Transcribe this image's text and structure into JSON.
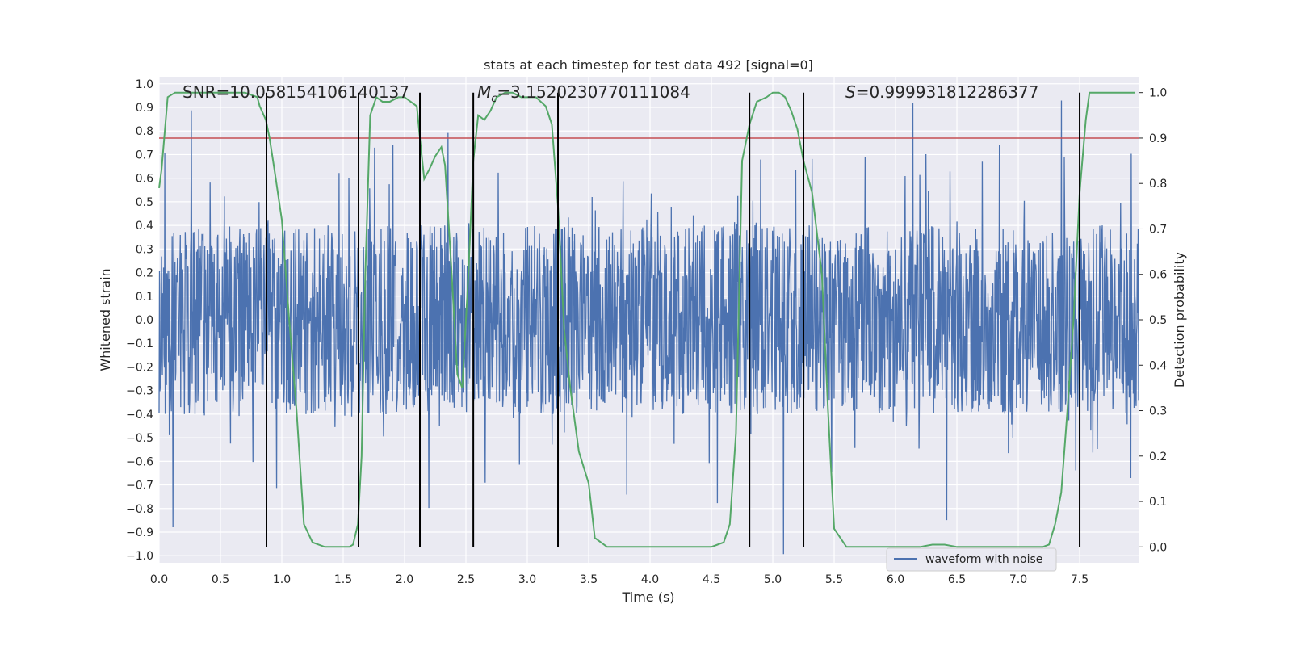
{
  "chart_data": {
    "type": "line",
    "title": "stats at each timestep for test data 492 [signal=0]",
    "xlabel": "Time (s)",
    "ylabel": "Whitened strain",
    "y2label": "Detection probability",
    "xlim": [
      0.0,
      7.98
    ],
    "ylim": [
      -1.03,
      1.03
    ],
    "y2lim": [
      -0.035,
      1.035
    ],
    "x_ticks": [
      0.0,
      0.5,
      1.0,
      1.5,
      2.0,
      2.5,
      3.0,
      3.5,
      4.0,
      4.5,
      5.0,
      5.5,
      6.0,
      6.5,
      7.0,
      7.5
    ],
    "x_tick_labels": [
      "0.0",
      "0.5",
      "1.0",
      "1.5",
      "2.0",
      "2.5",
      "3.0",
      "3.5",
      "4.0",
      "4.5",
      "5.0",
      "5.5",
      "6.0",
      "6.5",
      "7.0",
      "7.5"
    ],
    "y_ticks": [
      -1.0,
      -0.9,
      -0.8,
      -0.7,
      -0.6,
      -0.5,
      -0.4,
      -0.3,
      -0.2,
      -0.1,
      0.0,
      0.1,
      0.2,
      0.3,
      0.4,
      0.5,
      0.6,
      0.7,
      0.8,
      0.9,
      1.0
    ],
    "y_tick_labels": [
      "−1.0",
      "−0.9",
      "−0.8",
      "−0.7",
      "−0.6",
      "−0.5",
      "−0.4",
      "−0.3",
      "−0.2",
      "−0.1",
      "0.0",
      "0.1",
      "0.2",
      "0.3",
      "0.4",
      "0.5",
      "0.6",
      "0.7",
      "0.8",
      "0.9",
      "1.0"
    ],
    "y2_ticks": [
      0.0,
      0.1,
      0.2,
      0.3,
      0.4,
      0.5,
      0.6,
      0.7,
      0.8,
      0.9,
      1.0
    ],
    "y2_tick_labels": [
      "0.0",
      "0.1",
      "0.2",
      "0.3",
      "0.4",
      "0.5",
      "0.6",
      "0.7",
      "0.8",
      "0.9",
      "1.0"
    ],
    "grid": true,
    "legend": {
      "placement": "lower-right",
      "entries": [
        "waveform with noise"
      ]
    },
    "annotations": {
      "snr": "SNR=10.058154106140137",
      "mc_symbol": "M",
      "mc_sub": "c",
      "mc_value": "=3.1520230770111084",
      "s_symbol": "S",
      "s_value": "=0.999931812286377"
    },
    "threshold": {
      "axis": "y2",
      "value": 0.9
    },
    "vertical_lines": [
      0.875,
      1.625,
      2.125,
      2.56,
      3.25,
      4.81,
      5.25,
      7.5
    ],
    "series": [
      {
        "name": "waveform with noise",
        "axis": "y",
        "kind": "noise",
        "x_range": [
          0.0,
          7.98
        ],
        "band": [
          -0.4,
          0.4
        ],
        "peak_range": [
          -1.0,
          1.0
        ]
      },
      {
        "axis": "y2",
        "x": [
          0.0,
          0.02,
          0.07,
          0.13,
          0.2,
          0.3,
          0.4,
          0.5,
          0.6,
          0.7,
          0.8,
          0.82,
          0.87,
          0.9,
          0.94,
          1.0,
          1.06,
          1.12,
          1.18,
          1.25,
          1.35,
          1.45,
          1.55,
          1.58,
          1.62,
          1.65,
          1.68,
          1.72,
          1.77,
          1.82,
          1.88,
          1.95,
          2.0,
          2.05,
          2.1,
          2.125,
          2.16,
          2.2,
          2.25,
          2.3,
          2.33,
          2.38,
          2.43,
          2.47,
          2.52,
          2.56,
          2.6,
          2.65,
          2.7,
          2.75,
          2.82,
          2.88,
          2.95,
          3.0,
          3.07,
          3.15,
          3.2,
          3.25,
          3.3,
          3.35,
          3.42,
          3.5,
          3.55,
          3.6,
          3.65,
          3.7,
          3.75,
          3.85,
          3.95,
          4.05,
          4.15,
          4.25,
          4.35,
          4.45,
          4.5,
          4.55,
          4.6,
          4.65,
          4.7,
          4.75,
          4.81,
          4.87,
          4.95,
          5.0,
          5.05,
          5.1,
          5.15,
          5.2,
          5.25,
          5.32,
          5.4,
          5.45,
          5.5,
          5.6,
          5.7,
          5.8,
          5.9,
          6.0,
          6.1,
          6.2,
          6.3,
          6.4,
          6.5,
          6.6,
          6.7,
          6.8,
          6.9,
          7.0,
          7.1,
          7.2,
          7.25,
          7.3,
          7.35,
          7.4,
          7.45,
          7.5,
          7.55,
          7.58,
          7.62,
          7.7,
          7.8,
          7.9,
          7.95
        ],
        "y": [
          0.79,
          0.83,
          0.99,
          1.0,
          1.0,
          1.0,
          1.0,
          1.0,
          1.0,
          1.0,
          0.99,
          0.97,
          0.94,
          0.9,
          0.83,
          0.72,
          0.5,
          0.3,
          0.05,
          0.01,
          0.0,
          0.0,
          0.0,
          0.005,
          0.05,
          0.2,
          0.6,
          0.95,
          0.99,
          0.98,
          0.98,
          0.99,
          0.99,
          0.98,
          0.97,
          0.9,
          0.81,
          0.83,
          0.86,
          0.88,
          0.84,
          0.62,
          0.38,
          0.35,
          0.6,
          0.85,
          0.95,
          0.94,
          0.96,
          0.99,
          1.0,
          1.0,
          0.99,
          0.99,
          0.99,
          0.97,
          0.93,
          0.75,
          0.48,
          0.35,
          0.21,
          0.14,
          0.02,
          0.01,
          0.0,
          0.0,
          0.0,
          0.0,
          0.0,
          0.0,
          0.0,
          0.0,
          0.0,
          0.0,
          0.0,
          0.005,
          0.01,
          0.05,
          0.25,
          0.85,
          0.93,
          0.98,
          0.99,
          1.0,
          1.0,
          0.99,
          0.96,
          0.92,
          0.85,
          0.78,
          0.6,
          0.3,
          0.04,
          0.0,
          0.0,
          0.0,
          0.0,
          0.0,
          0.0,
          0.0,
          0.005,
          0.005,
          0.0,
          0.0,
          0.0,
          0.0,
          0.0,
          0.0,
          0.0,
          0.0,
          0.005,
          0.05,
          0.12,
          0.3,
          0.5,
          0.78,
          0.94,
          1.0,
          1.0,
          1.0,
          1.0,
          1.0,
          1.0
        ]
      }
    ],
    "colors": {
      "background": "#eaeaf2",
      "grid": "#ffffff",
      "waveform": "#4c72b0",
      "probability": "#55a868",
      "threshold": "#c44e52",
      "vertical": "#000000"
    }
  }
}
